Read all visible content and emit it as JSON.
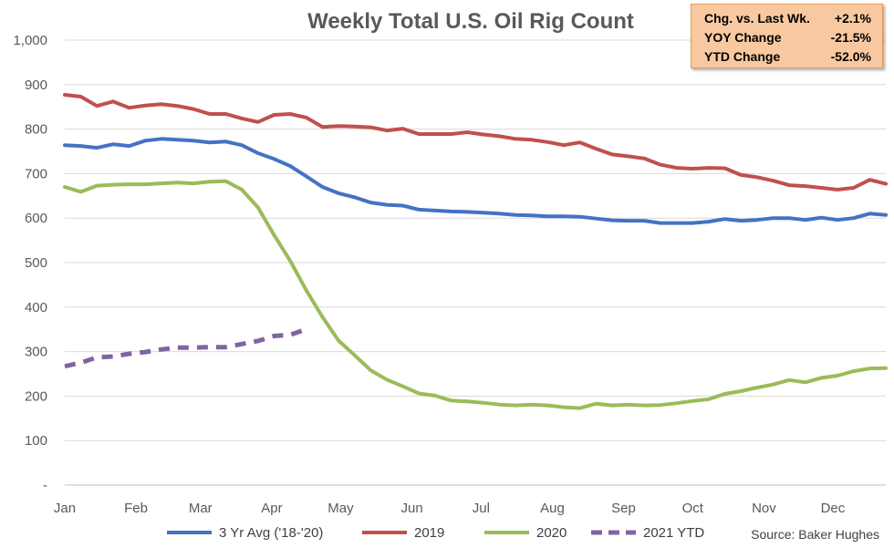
{
  "chart_data": {
    "type": "line",
    "title": "Weekly Total U.S. Oil Rig Count",
    "x_ticks": [
      "Jan",
      "Feb",
      "Mar",
      "Apr",
      "May",
      "Jun",
      "Jul",
      "Aug",
      "Sep",
      "Oct",
      "Nov",
      "Dec"
    ],
    "y_ticks": [
      "-",
      "100",
      "200",
      "300",
      "400",
      "500",
      "600",
      "700",
      "800",
      "900",
      "1,000"
    ],
    "ylim": [
      0,
      1000
    ],
    "grid": "horizontal",
    "legend_position": "bottom",
    "series": [
      {
        "name": "3 Yr Avg ('18-'20)",
        "color": "#4472c4",
        "dashed": false,
        "values": [
          764,
          762,
          758,
          766,
          762,
          774,
          778,
          776,
          774,
          770,
          772,
          764,
          746,
          733,
          717,
          694,
          670,
          656,
          647,
          635,
          630,
          628,
          619,
          617,
          615,
          614,
          612,
          610,
          607,
          606,
          604,
          604,
          603,
          599,
          595,
          594,
          594,
          589,
          589,
          589,
          592,
          598,
          594,
          596,
          600,
          600,
          596,
          601,
          596,
          600,
          610,
          607
        ]
      },
      {
        "name": "2019",
        "color": "#c0504d",
        "dashed": false,
        "values": [
          877,
          873,
          852,
          862,
          848,
          853,
          856,
          852,
          845,
          834,
          834,
          824,
          816,
          832,
          834,
          826,
          805,
          807,
          806,
          804,
          797,
          801,
          789,
          789,
          789,
          793,
          788,
          784,
          778,
          776,
          771,
          764,
          770,
          756,
          743,
          739,
          734,
          720,
          713,
          711,
          713,
          712,
          697,
          692,
          684,
          674,
          672,
          668,
          664,
          668,
          686,
          677
        ]
      },
      {
        "name": "2020",
        "color": "#9bbb59",
        "dashed": false,
        "values": [
          670,
          659,
          673,
          675,
          676,
          676,
          678,
          680,
          678,
          682,
          683,
          664,
          624,
          562,
          504,
          438,
          378,
          325,
          292,
          258,
          237,
          222,
          206,
          201,
          190,
          188,
          185,
          181,
          179,
          181,
          179,
          175,
          173,
          183,
          179,
          181,
          179,
          180,
          184,
          189,
          193,
          205,
          211,
          219,
          226,
          236,
          231,
          241,
          246,
          256,
          262,
          263
        ]
      },
      {
        "name": "2021 YTD",
        "color": "#8064a2",
        "dashed": true,
        "values": [
          267,
          275,
          287,
          289,
          295,
          299,
          305,
          309,
          309,
          310,
          310,
          317,
          324,
          335,
          338,
          350
        ]
      }
    ],
    "source": "Source: Baker Hughes"
  },
  "stats": [
    {
      "label": "Chg. vs. Last Wk.",
      "value": "+2.1%"
    },
    {
      "label": "YOY Change",
      "value": "-21.5%"
    },
    {
      "label": "YTD Change",
      "value": "-52.0%"
    }
  ]
}
